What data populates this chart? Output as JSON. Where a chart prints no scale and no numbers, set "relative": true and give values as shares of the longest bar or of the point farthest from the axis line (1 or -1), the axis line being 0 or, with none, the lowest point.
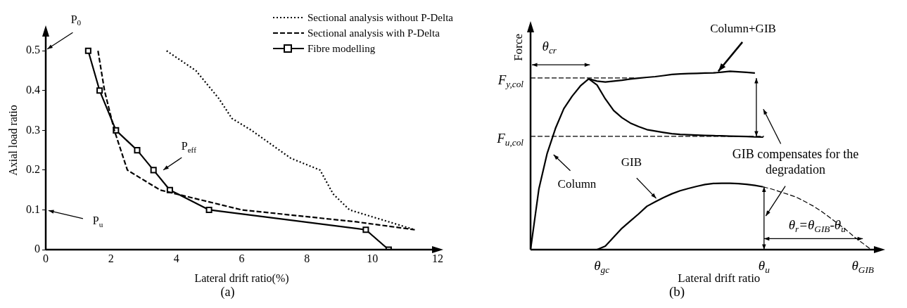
{
  "chart_data": [
    {
      "type": "line",
      "xlabel": "Lateral drift ratio(%)",
      "ylabel": "Axial load ratio",
      "xlim": [
        0,
        12
      ],
      "ylim": [
        0,
        0.55
      ],
      "xticks": [
        0,
        2,
        4,
        6,
        8,
        10,
        12
      ],
      "yticks": [
        0,
        0.1,
        0.2,
        0.3,
        0.4,
        0.5
      ],
      "legend": "top right",
      "grid": false,
      "series": [
        {
          "name": "Sectional analysis without P-Delta",
          "color": "#000000",
          "line_style": "dotted",
          "marker": "none",
          "x": [
            3.7,
            4.6,
            5.3,
            5.7,
            6.3,
            7.5,
            8.4,
            8.8,
            9.3,
            10.5,
            11.3
          ],
          "values": [
            0.5,
            0.45,
            0.38,
            0.33,
            0.3,
            0.23,
            0.2,
            0.14,
            0.1,
            0.07,
            0.05
          ]
        },
        {
          "name": "Sectional analysis with P-Delta",
          "color": "#000000",
          "line_style": "dashed",
          "marker": "none",
          "x": [
            1.6,
            1.8,
            2.1,
            2.5,
            3.5,
            6,
            9.5,
            11.3
          ],
          "values": [
            0.5,
            0.4,
            0.3,
            0.2,
            0.15,
            0.1,
            0.07,
            0.05
          ]
        },
        {
          "name": "Fibre modelling",
          "color": "#000000",
          "line_style": "solid",
          "marker": "square",
          "x": [
            1.3,
            1.65,
            2.15,
            2.8,
            3.3,
            3.8,
            5,
            9.8,
            10.5
          ],
          "values": [
            0.5,
            0.4,
            0.3,
            0.25,
            0.2,
            0.15,
            0.1,
            0.05,
            0
          ]
        }
      ],
      "annotations": [
        "P$_{0}$",
        "P$_{eff}$",
        "P$_{u}$",
        "(a)"
      ]
    },
    {
      "type": "line",
      "relative": true,
      "xlabel": "Lateral drift ratio",
      "ylabel": "Force",
      "grid": false,
      "legend": false,
      "categories": [
        null,
        null,
        null,
        null,
        null,
        null,
        null,
        null,
        null,
        null,
        null,
        null,
        null,
        null,
        null,
        null,
        null,
        null,
        null,
        null,
        null,
        null,
        null,
        null,
        null,
        null,
        null,
        null,
        null,
        null,
        null,
        null,
        null,
        null,
        null,
        null,
        null,
        null,
        null,
        null,
        null,
        null,
        null
      ],
      "series": [
        {
          "color": "#000000",
          "line_style": "solid",
          "values": [
            0,
            0.34,
            0.54,
            0.68,
            0.79,
            0.86,
            0.918,
            0.958,
            0.923,
            0.845,
            0.78,
            0.74,
            0.71,
            0.69,
            0.673,
            0.665,
            0.657,
            0.65,
            0.646,
            0.644,
            0.642,
            0.64,
            0.639,
            0.638,
            0.636,
            0.635,
            0.634,
            0.632,
            0.631,
            null,
            null,
            null,
            null,
            null,
            null,
            null,
            null,
            null,
            null,
            null,
            null,
            null,
            null
          ]
        },
        {
          "color": "#000000",
          "line_style": "solid",
          "values": [
            null,
            null,
            null,
            null,
            null,
            null,
            null,
            0.958,
            0.945,
            0.94,
            0.945,
            0.95,
            0.957,
            0.962,
            0.966,
            0.97,
            0.976,
            0.982,
            0.985,
            0.987,
            0.988,
            0.99,
            0.991,
            0.995,
            1,
            0.997,
            0.994,
            0.99,
            null,
            null,
            null,
            null,
            null,
            null,
            null,
            null,
            null,
            null,
            null,
            null,
            null,
            null,
            null
          ]
        },
        {
          "color": "#000000",
          "line_style": "solid",
          "values": [
            null,
            null,
            null,
            null,
            null,
            null,
            null,
            null,
            0,
            0.02,
            0.07,
            0.12,
            0.16,
            0.2,
            0.243,
            0.268,
            0.292,
            0.313,
            0.33,
            0.343,
            0.355,
            0.365,
            0.371,
            0.372,
            0.372,
            0.37,
            0.366,
            0.36,
            0.352,
            null,
            null,
            null,
            null,
            null,
            null,
            null,
            null,
            null,
            null,
            null,
            null,
            null,
            null
          ]
        },
        {
          "color": "#000000",
          "line_style": "dashed",
          "values": [
            null,
            null,
            null,
            null,
            null,
            null,
            null,
            null,
            null,
            null,
            null,
            null,
            null,
            null,
            null,
            null,
            null,
            null,
            null,
            null,
            null,
            null,
            null,
            null,
            null,
            null,
            null,
            null,
            0.352,
            0.34,
            0.325,
            0.31,
            0.294,
            0.27,
            0.245,
            0.215,
            0.18,
            0.145,
            0.11,
            0.07,
            0.035,
            0,
            null
          ]
        }
      ],
      "ref_lines": [
        {
          "axis": "y",
          "value": 0.963,
          "label": "F$_{y,col}$",
          "line_style": "dashed"
        },
        {
          "axis": "y",
          "value": 0.635,
          "label": "F$_{u,col}$",
          "line_style": "dashed"
        }
      ],
      "annotations": [
        "Column+GIB",
        "Column",
        "GIB",
        "GIB compensates for the degradation",
        "θ$_{cr}$",
        "θ$_{r}$=θ$_{GIB}$-θ$_{u}$",
        "θ$_{gc}$",
        "θ$_{u}$",
        "θ$_{GIB}$",
        "(b)"
      ]
    }
  ]
}
